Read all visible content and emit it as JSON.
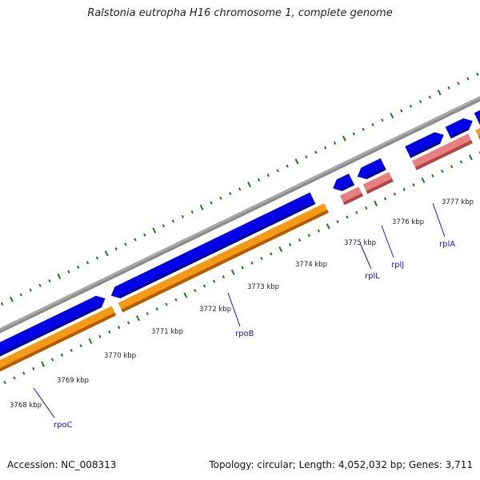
{
  "title": "Ralstonia eutropha H16 chromosome 1, complete genome",
  "footer": {
    "accession": "Accession: NC_008313",
    "summary": "Topology: circular; Length: 4,052,032 bp; Genes: 3,711"
  },
  "map": {
    "tick_labels": [
      "3768 kbp",
      "3769 kbp",
      "3770 kbp",
      "3771 kbp",
      "3772 kbp",
      "3773 kbp",
      "3774 kbp",
      "3775 kbp",
      "3776 kbp",
      "3777 kbp"
    ],
    "genes": [
      {
        "name": "rpoC"
      },
      {
        "name": "rpoB"
      },
      {
        "name": "rplL"
      },
      {
        "name": "rplJ"
      },
      {
        "name": "rplA"
      }
    ],
    "colors": {
      "backbone": "#8a8a8a",
      "forward_cds": "#0000e6",
      "forward_cds_dark": "#00008c",
      "orf": "#f59a16",
      "orf_dark": "#b35c00",
      "rrna_pink": "#e88080",
      "rrna_dark": "#b04848",
      "tick": "#1a7a1a",
      "label_line": "#1111cc",
      "label_text": "#1111cc"
    }
  }
}
